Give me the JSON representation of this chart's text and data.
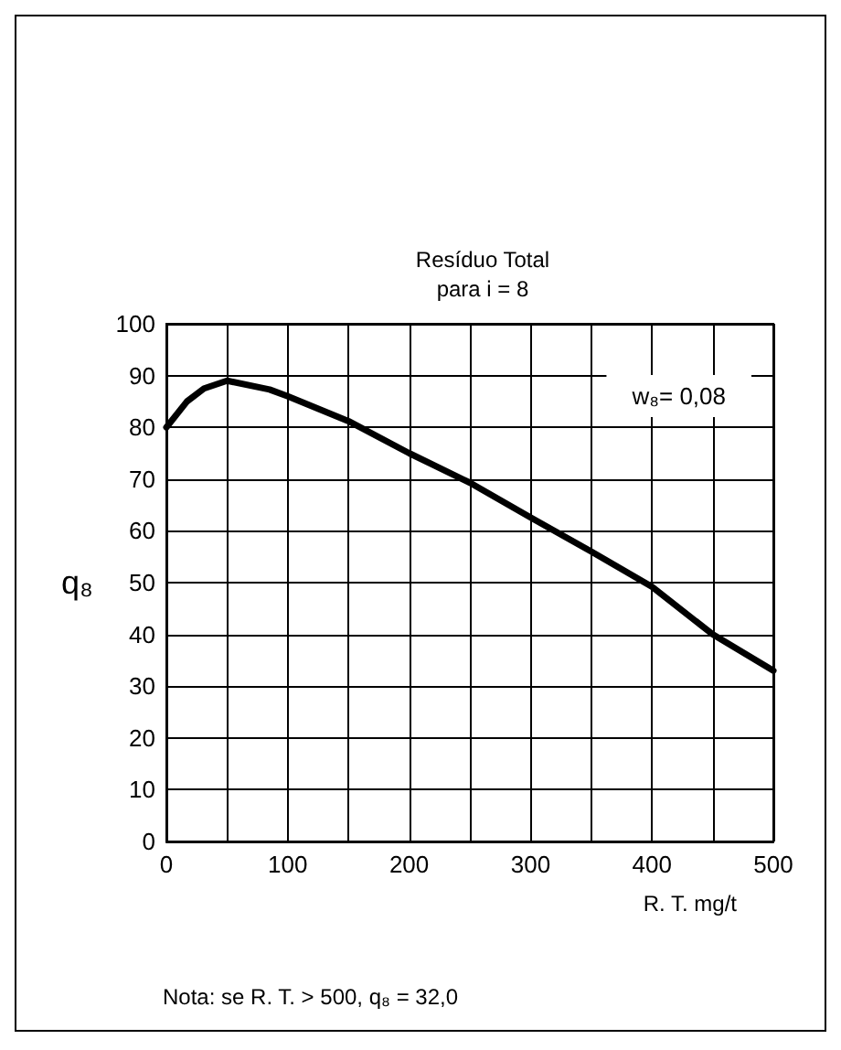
{
  "chart_data": {
    "type": "line",
    "title": "Resíduo Total\npara i = 8",
    "xlabel": "R. T. mg/t",
    "ylabel": "q₈",
    "x": [
      0,
      17,
      31,
      50,
      85,
      100,
      150,
      200,
      250,
      300,
      350,
      400,
      450,
      500
    ],
    "series": [
      {
        "color": "#000000",
        "values": [
          80,
          85,
          87.5,
          89,
          87.3,
          86,
          81.2,
          75,
          69.3,
          62.6,
          56,
          49.2,
          40,
          33
        ]
      }
    ],
    "xlim": [
      0,
      500
    ],
    "ylim": [
      0,
      100
    ],
    "xticks": [
      0,
      {
        "value": 50,
        "label": null
      },
      100,
      {
        "value": 150,
        "label": null
      },
      200,
      {
        "value": 250,
        "label": null
      },
      300,
      {
        "value": 350,
        "label": null
      },
      400,
      {
        "value": 450,
        "label": null
      },
      500
    ],
    "yticks": [
      0,
      10,
      20,
      30,
      40,
      50,
      60,
      70,
      80,
      90,
      100
    ],
    "grid": true,
    "marker": "none",
    "line_style": "solid",
    "annotations": [
      "w₈= 0,08",
      "Nota: se R. T. > 500, q₈ = 32,0"
    ]
  }
}
